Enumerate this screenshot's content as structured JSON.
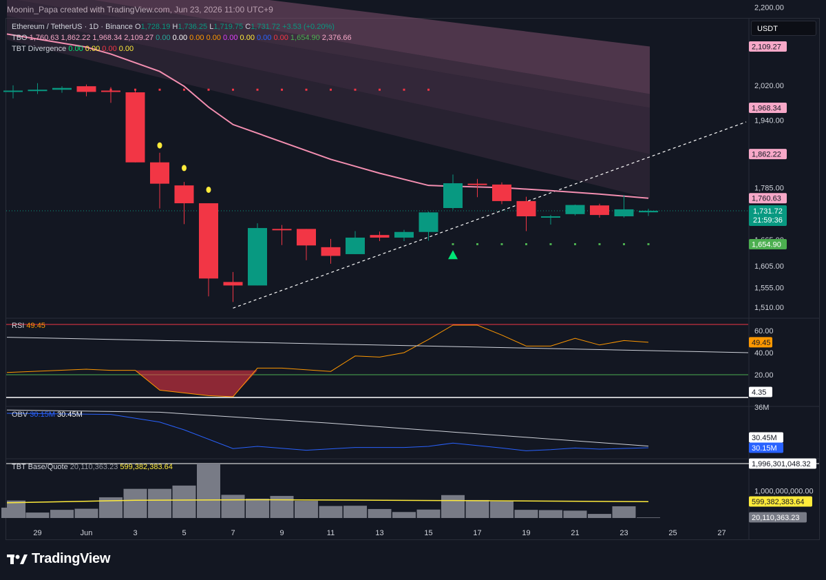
{
  "credit": "Moonin_Papa created with TradingView.com, Jun 23, 2026 11:00 UTC+9",
  "currency_button": "USDT",
  "brand": "TradingView",
  "legend": {
    "symbol": "Ethereum / TetherUS · 1D · Binance",
    "o_label": "O",
    "o": "1,728.19",
    "h_label": "H",
    "h": "1,736.25",
    "l_label": "L",
    "l": "1,719.75",
    "c_label": "C",
    "c": "1,731.72",
    "change": "+3.53 (+0.20%)",
    "tbo_label": "TBO",
    "tbo_values": [
      {
        "text": "1,760.63",
        "color": "#f7a8c8"
      },
      {
        "text": "1,862.22",
        "color": "#f7a8c8"
      },
      {
        "text": "1,968.34",
        "color": "#f7a8c8"
      },
      {
        "text": "2,109.27",
        "color": "#f7a8c8"
      },
      {
        "text": "0.00",
        "color": "#26a69a"
      },
      {
        "text": "0.00",
        "color": "#ffffff"
      },
      {
        "text": "0.00",
        "color": "#ff9800"
      },
      {
        "text": "0.00",
        "color": "#ff9800"
      },
      {
        "text": "0.00",
        "color": "#e040fb"
      },
      {
        "text": "0.00",
        "color": "#ffeb3b"
      },
      {
        "text": "0.00",
        "color": "#2962ff"
      },
      {
        "text": "0.00",
        "color": "#f23645"
      },
      {
        "text": "1,654.90",
        "color": "#4caf50"
      },
      {
        "text": "2,376.66",
        "color": "#f7a8c8"
      }
    ],
    "div_label": "TBT Divergence",
    "div_values": [
      {
        "text": "0.00",
        "color": "#00e676"
      },
      {
        "text": "0.00",
        "color": "#ffeb3b"
      },
      {
        "text": "0.00",
        "color": "#f23645"
      },
      {
        "text": "0.00",
        "color": "#ffeb3b"
      }
    ]
  },
  "price_axis_ticks": [
    "2,200.00",
    "2,020.00",
    "1,940.00",
    "1,785.00",
    "1,665.00",
    "1,605.00",
    "1,555.00",
    "1,510.00"
  ],
  "price_axis_ticks_values": [
    2200,
    2020,
    1940,
    1785,
    1665,
    1605,
    1555,
    1510
  ],
  "price_labels": [
    {
      "text": "2,109.27",
      "value": 2109.27,
      "bg": "#f7a8c8",
      "fg": "#131722"
    },
    {
      "text": "1,968.34",
      "value": 1968.34,
      "bg": "#f7a8c8",
      "fg": "#131722"
    },
    {
      "text": "1,862.22",
      "value": 1862.22,
      "bg": "#f7a8c8",
      "fg": "#131722"
    },
    {
      "text": "1,760.63",
      "value": 1760.63,
      "bg": "#f7a8c8",
      "fg": "#131722"
    },
    {
      "text": "1,654.90",
      "value": 1654.9,
      "bg": "#4caf50",
      "fg": "#ffffff"
    }
  ],
  "last_price_label": {
    "price": "1,731.72",
    "countdown": "21:59:36",
    "value": 1731.72,
    "bg": "#089981"
  },
  "x_ticks": [
    "29",
    "Jun",
    "3",
    "5",
    "7",
    "9",
    "11",
    "13",
    "15",
    "17",
    "19",
    "21",
    "23",
    "25",
    "27"
  ],
  "x_ticks_days": [
    -3,
    -1,
    1,
    3,
    5,
    7,
    9,
    11,
    13,
    15,
    17,
    19,
    21,
    23,
    25
  ],
  "rsi": {
    "label": "RSI",
    "value": "49.45",
    "ticks": [
      "60.00",
      "40.00",
      "20.00"
    ],
    "tick_values": [
      60,
      40,
      20
    ],
    "labels": [
      {
        "text": "49.45",
        "value": 49.45,
        "bg": "#ff9800",
        "fg": "#131722"
      },
      {
        "text": "4.35",
        "value": 4.35,
        "bg": "#ffffff",
        "fg": "#131722"
      }
    ]
  },
  "obv": {
    "label": "OBV",
    "v1": "30.15M",
    "v2": "30.45M",
    "tick": "36M",
    "labels": [
      {
        "text": "30.45M",
        "bg": "#ffffff",
        "fg": "#131722"
      },
      {
        "text": "30.15M",
        "bg": "#2962ff",
        "fg": "#ffffff"
      }
    ]
  },
  "tbt_base": {
    "label": "TBT Base/Quote",
    "v1": "20,110,363.23",
    "v2": "599,382,383.64",
    "tick": "1,000,000,000.00",
    "tick_value": 1000000000,
    "labels": [
      {
        "text": "1,996,301,048.32",
        "value": 1996301048.32,
        "bg": "#ffffff",
        "fg": "#131722"
      },
      {
        "text": "599,382,383.64",
        "value": 599382383.64,
        "bg": "#ffeb3b",
        "fg": "#131722"
      },
      {
        "text": "20,110,363.23",
        "value": 20110363.23,
        "bg": "#787b86",
        "fg": "#ffffff"
      }
    ]
  },
  "colors": {
    "up": "#089981",
    "down": "#f23645",
    "ma": "#f48fb1",
    "rsi": "#ff9800",
    "obv": "#2962ff",
    "base_line": "#ffeb3b",
    "volume": "#787b86"
  },
  "chart_data": {
    "type": "candlestick",
    "title": "Ethereum / TetherUS · 1D · Binance",
    "x_unit": "day (Jun = 1; 29 = May 29)",
    "candles": [
      {
        "day": -4,
        "o": 2008,
        "h": 2020,
        "l": 1990,
        "c": 2008
      },
      {
        "day": -3,
        "o": 2008,
        "h": 2025,
        "l": 2000,
        "c": 2010
      },
      {
        "day": -2,
        "o": 2010,
        "h": 2018,
        "l": 2003,
        "c": 2014
      },
      {
        "day": -1,
        "o": 2018,
        "h": 2022,
        "l": 1995,
        "c": 2005
      },
      {
        "day": 0,
        "o": 2008,
        "h": 2016,
        "l": 1980,
        "c": 2006
      },
      {
        "day": 1,
        "o": 2004,
        "h": 2010,
        "l": 1843,
        "c": 1843
      },
      {
        "day": 2,
        "o": 1843,
        "h": 1865,
        "l": 1737,
        "c": 1794
      },
      {
        "day": 3,
        "o": 1790,
        "h": 1798,
        "l": 1701,
        "c": 1749
      },
      {
        "day": 4,
        "o": 1749,
        "h": 1749,
        "l": 1535,
        "c": 1576
      },
      {
        "day": 5,
        "o": 1568,
        "h": 1591,
        "l": 1522,
        "c": 1560
      },
      {
        "day": 6,
        "o": 1560,
        "h": 1703,
        "l": 1560,
        "c": 1692
      },
      {
        "day": 7,
        "o": 1690,
        "h": 1699,
        "l": 1653,
        "c": 1688
      },
      {
        "day": 8,
        "o": 1690,
        "h": 1690,
        "l": 1618,
        "c": 1652
      },
      {
        "day": 9,
        "o": 1648,
        "h": 1667,
        "l": 1610,
        "c": 1628
      },
      {
        "day": 10,
        "o": 1632,
        "h": 1685,
        "l": 1632,
        "c": 1670
      },
      {
        "day": 11,
        "o": 1676,
        "h": 1684,
        "l": 1662,
        "c": 1670
      },
      {
        "day": 12,
        "o": 1670,
        "h": 1688,
        "l": 1662,
        "c": 1683
      },
      {
        "day": 13,
        "o": 1683,
        "h": 1730,
        "l": 1663,
        "c": 1728
      },
      {
        "day": 14,
        "o": 1738,
        "h": 1815,
        "l": 1734,
        "c": 1795
      },
      {
        "day": 15,
        "o": 1794,
        "h": 1805,
        "l": 1763,
        "c": 1792
      },
      {
        "day": 16,
        "o": 1792,
        "h": 1797,
        "l": 1747,
        "c": 1754
      },
      {
        "day": 17,
        "o": 1754,
        "h": 1764,
        "l": 1685,
        "c": 1719
      },
      {
        "day": 18,
        "o": 1718,
        "h": 1722,
        "l": 1700,
        "c": 1719
      },
      {
        "day": 19,
        "o": 1724,
        "h": 1746,
        "l": 1721,
        "c": 1745
      },
      {
        "day": 20,
        "o": 1744,
        "h": 1748,
        "l": 1716,
        "c": 1722
      },
      {
        "day": 21,
        "o": 1719,
        "h": 1768,
        "l": 1716,
        "c": 1735
      },
      {
        "day": 22,
        "o": 1728.19,
        "h": 1736.25,
        "l": 1719.75,
        "c": 1731.72
      }
    ],
    "tbo_ma": [
      {
        "day": -5,
        "v": 2138
      },
      {
        "day": -1,
        "v": 2108
      },
      {
        "day": 0,
        "v": 2092
      },
      {
        "day": 2,
        "v": 2052
      },
      {
        "day": 3,
        "v": 2018
      },
      {
        "day": 4,
        "v": 1970
      },
      {
        "day": 5,
        "v": 1930
      },
      {
        "day": 7,
        "v": 1890
      },
      {
        "day": 9,
        "v": 1850
      },
      {
        "day": 11,
        "v": 1818
      },
      {
        "day": 13,
        "v": 1790
      },
      {
        "day": 14,
        "v": 1788
      },
      {
        "day": 16,
        "v": 1785
      },
      {
        "day": 18,
        "v": 1778
      },
      {
        "day": 20,
        "v": 1770
      },
      {
        "day": 22,
        "v": 1760.63
      }
    ],
    "tbo_bands": [
      {
        "day": -5,
        "top": 2290,
        "b1": 2250,
        "b2": 2220,
        "b3": 2180
      },
      {
        "day": 22,
        "top": 2109.27,
        "b1": 2000,
        "b2": 1968.34,
        "b3": 1862.22
      }
    ],
    "resistance_dots": {
      "value": 2010,
      "days": [
        -1,
        0,
        1,
        2,
        3,
        4,
        5,
        6,
        7,
        8,
        9,
        10,
        11,
        12,
        13
      ]
    },
    "support_dots": {
      "value": 1654.9,
      "days": [
        14,
        15,
        16,
        17,
        18,
        19,
        20,
        21,
        22
      ]
    },
    "sell_markers": [
      {
        "day": 2,
        "value": 1882
      },
      {
        "day": 3,
        "value": 1830
      },
      {
        "day": 4,
        "value": 1780
      }
    ],
    "buy_markers": [
      {
        "day": 14,
        "value": 1630
      }
    ],
    "trendline": {
      "from": {
        "day": 5,
        "v": 1508
      },
      "to": {
        "day": 26,
        "v": 1936
      }
    },
    "rsi_series": [
      {
        "day": -5,
        "v": 22
      },
      {
        "day": -1,
        "v": 25
      },
      {
        "day": 0,
        "v": 24
      },
      {
        "day": 1,
        "v": 24
      },
      {
        "day": 2,
        "v": 6
      },
      {
        "day": 4,
        "v": 1
      },
      {
        "day": 5,
        "v": 0
      },
      {
        "day": 6,
        "v": 26
      },
      {
        "day": 7,
        "v": 26
      },
      {
        "day": 9,
        "v": 23
      },
      {
        "day": 10,
        "v": 37
      },
      {
        "day": 11,
        "v": 36
      },
      {
        "day": 12,
        "v": 40
      },
      {
        "day": 13,
        "v": 52
      },
      {
        "day": 14,
        "v": 65
      },
      {
        "day": 15,
        "v": 65
      },
      {
        "day": 16,
        "v": 56
      },
      {
        "day": 17,
        "v": 46
      },
      {
        "day": 18,
        "v": 46
      },
      {
        "day": 19,
        "v": 53
      },
      {
        "day": 20,
        "v": 47
      },
      {
        "day": 21,
        "v": 51
      },
      {
        "day": 22,
        "v": 49.45
      }
    ],
    "rsi_ma": [
      {
        "day": -5,
        "v": 54
      },
      {
        "day": 25,
        "v": 40
      }
    ],
    "obv_series": [
      {
        "day": -5,
        "v": 36.4
      },
      {
        "day": 0,
        "v": 36.2
      },
      {
        "day": 2,
        "v": 34.8
      },
      {
        "day": 3,
        "v": 33.4
      },
      {
        "day": 5,
        "v": 30.0
      },
      {
        "day": 6,
        "v": 30.4
      },
      {
        "day": 8,
        "v": 29.7
      },
      {
        "day": 10,
        "v": 30.2
      },
      {
        "day": 12,
        "v": 30.2
      },
      {
        "day": 13,
        "v": 30.4
      },
      {
        "day": 14,
        "v": 31.0
      },
      {
        "day": 16,
        "v": 30.1
      },
      {
        "day": 17,
        "v": 29.6
      },
      {
        "day": 18,
        "v": 29.8
      },
      {
        "day": 19,
        "v": 30.1
      },
      {
        "day": 20,
        "v": 29.9
      },
      {
        "day": 22,
        "v": 30.15
      }
    ],
    "obv_ma": [
      {
        "day": -5,
        "v": 37.0
      },
      {
        "day": 2,
        "v": 36.6
      },
      {
        "day": 9,
        "v": 34.6
      },
      {
        "day": 14,
        "v": 33.0
      },
      {
        "day": 22,
        "v": 30.45
      }
    ],
    "base_volumes": [
      {
        "day": -5,
        "v": 640000000
      },
      {
        "day": -4,
        "v": 380000000
      },
      {
        "day": -3,
        "v": 200000000
      },
      {
        "day": -2,
        "v": 300000000
      },
      {
        "day": -1,
        "v": 340000000
      },
      {
        "day": 0,
        "v": 760000000
      },
      {
        "day": 1,
        "v": 1070000000
      },
      {
        "day": 2,
        "v": 1070000000
      },
      {
        "day": 3,
        "v": 1190000000
      },
      {
        "day": 4,
        "v": 1996301048
      },
      {
        "day": 5,
        "v": 850000000
      },
      {
        "day": 6,
        "v": 710000000
      },
      {
        "day": 7,
        "v": 810000000
      },
      {
        "day": 8,
        "v": 630000000
      },
      {
        "day": 9,
        "v": 440000000
      },
      {
        "day": 10,
        "v": 450000000
      },
      {
        "day": 11,
        "v": 330000000
      },
      {
        "day": 12,
        "v": 220000000
      },
      {
        "day": 13,
        "v": 310000000
      },
      {
        "day": 14,
        "v": 840000000
      },
      {
        "day": 15,
        "v": 660000000
      },
      {
        "day": 16,
        "v": 610000000
      },
      {
        "day": 17,
        "v": 300000000
      },
      {
        "day": 18,
        "v": 290000000
      },
      {
        "day": 19,
        "v": 270000000
      },
      {
        "day": 20,
        "v": 150000000
      },
      {
        "day": 21,
        "v": 430000000
      },
      {
        "day": 22,
        "v": 20110363
      }
    ],
    "base_line": [
      {
        "day": -5,
        "v": 560000000
      },
      {
        "day": 1,
        "v": 650000000
      },
      {
        "day": 6,
        "v": 670000000
      },
      {
        "day": 14,
        "v": 640000000
      },
      {
        "day": 22,
        "v": 599382383
      }
    ]
  }
}
